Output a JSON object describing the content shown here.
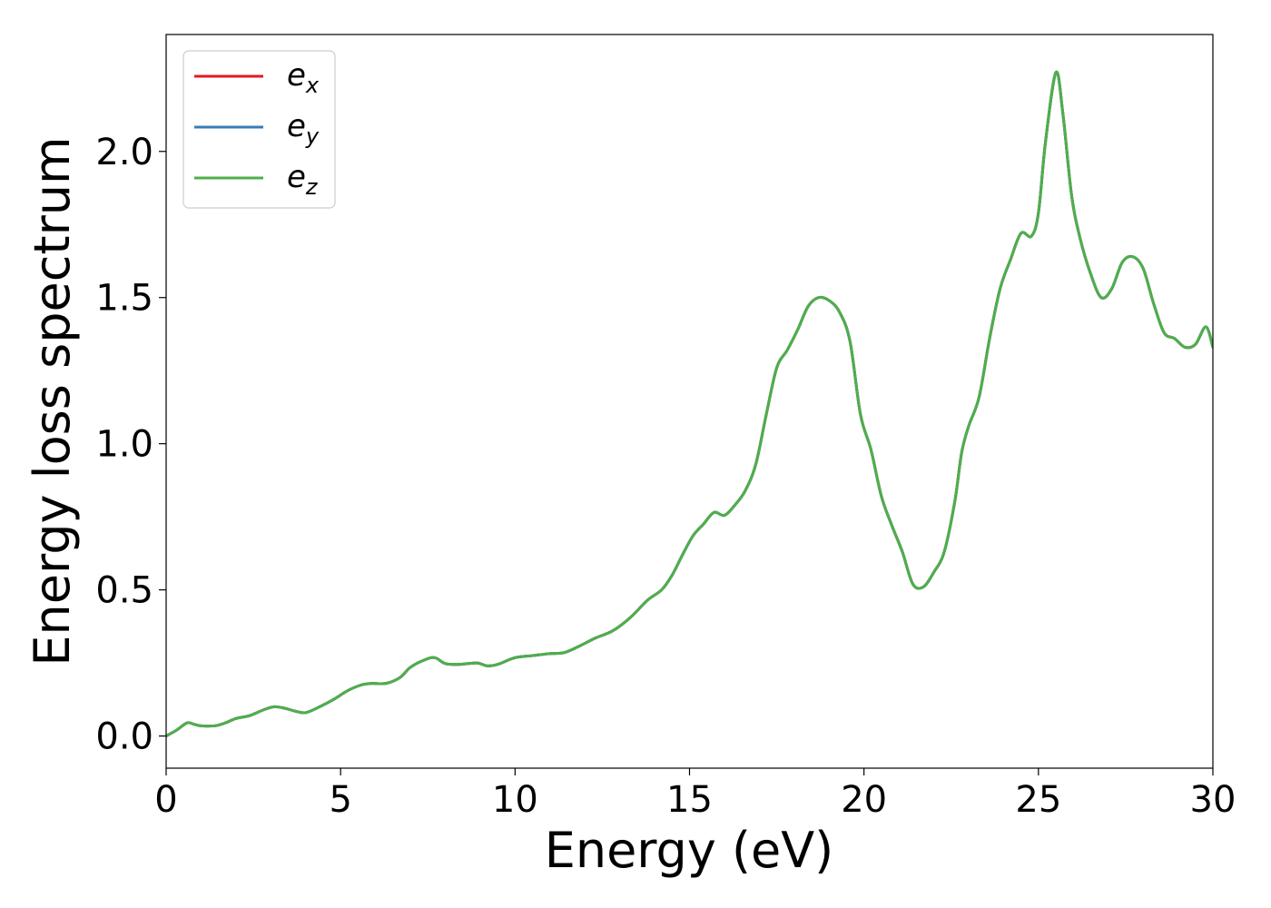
{
  "chart_data": {
    "type": "line",
    "title": "",
    "xlabel": "Energy (eV)",
    "ylabel": "Energy loss spectrum",
    "xlim": [
      0,
      30
    ],
    "ylim": [
      -0.11,
      2.4
    ],
    "xticks": [
      0,
      5,
      10,
      15,
      20,
      25,
      30
    ],
    "xtick_labels": [
      "0",
      "5",
      "10",
      "15",
      "20",
      "25",
      "30"
    ],
    "yticks": [
      0.0,
      0.5,
      1.0,
      1.5,
      2.0
    ],
    "ytick_labels": [
      "0.0",
      "0.5",
      "1.0",
      "1.5",
      "2.0"
    ],
    "grid": false,
    "legend_position": "top-left",
    "x": [
      0,
      0.3,
      0.6,
      0.8,
      1.0,
      1.4,
      1.7,
      2.0,
      2.4,
      2.8,
      3.1,
      3.4,
      3.7,
      4.0,
      4.4,
      4.8,
      5.2,
      5.6,
      5.9,
      6.3,
      6.7,
      7.0,
      7.4,
      7.7,
      8.0,
      8.4,
      8.9,
      9.2,
      9.5,
      10.0,
      10.5,
      11.0,
      11.4,
      11.8,
      12.3,
      12.8,
      13.3,
      13.8,
      14.2,
      14.5,
      14.8,
      15.1,
      15.4,
      15.7,
      16.0,
      16.3,
      16.6,
      16.9,
      17.2,
      17.5,
      17.8,
      18.1,
      18.4,
      18.7,
      19.0,
      19.3,
      19.6,
      19.9,
      20.2,
      20.5,
      20.8,
      21.1,
      21.4,
      21.7,
      22.0,
      22.3,
      22.6,
      22.8,
      23.0,
      23.3,
      23.6,
      23.9,
      24.2,
      24.5,
      24.8,
      25.0,
      25.2,
      25.5,
      25.7,
      25.95,
      26.2,
      26.5,
      26.8,
      27.1,
      27.4,
      27.7,
      28.0,
      28.3,
      28.6,
      28.9,
      29.2,
      29.5,
      29.8,
      30.0
    ],
    "series": [
      {
        "name": "e",
        "sub": "x",
        "color": "#e41a1c",
        "values": [
          0.0,
          0.02,
          0.045,
          0.04,
          0.035,
          0.035,
          0.045,
          0.06,
          0.07,
          0.09,
          0.1,
          0.095,
          0.085,
          0.08,
          0.1,
          0.125,
          0.155,
          0.175,
          0.18,
          0.18,
          0.2,
          0.235,
          0.26,
          0.268,
          0.248,
          0.245,
          0.25,
          0.24,
          0.245,
          0.268,
          0.275,
          0.282,
          0.285,
          0.305,
          0.335,
          0.36,
          0.405,
          0.465,
          0.5,
          0.55,
          0.62,
          0.685,
          0.725,
          0.765,
          0.755,
          0.79,
          0.84,
          0.93,
          1.1,
          1.26,
          1.32,
          1.39,
          1.47,
          1.5,
          1.49,
          1.45,
          1.35,
          1.1,
          0.98,
          0.82,
          0.72,
          0.63,
          0.52,
          0.51,
          0.56,
          0.63,
          0.8,
          0.97,
          1.06,
          1.16,
          1.36,
          1.53,
          1.63,
          1.72,
          1.71,
          1.79,
          2.03,
          2.27,
          2.13,
          1.85,
          1.7,
          1.58,
          1.5,
          1.53,
          1.62,
          1.64,
          1.6,
          1.48,
          1.38,
          1.36,
          1.33,
          1.34,
          1.4,
          1.33
        ]
      },
      {
        "name": "e",
        "sub": "y",
        "color": "#377eb8",
        "values": [
          0.0,
          0.02,
          0.045,
          0.04,
          0.035,
          0.035,
          0.045,
          0.06,
          0.07,
          0.09,
          0.1,
          0.095,
          0.085,
          0.08,
          0.1,
          0.125,
          0.155,
          0.175,
          0.18,
          0.18,
          0.2,
          0.235,
          0.26,
          0.268,
          0.248,
          0.245,
          0.25,
          0.24,
          0.245,
          0.268,
          0.275,
          0.282,
          0.285,
          0.305,
          0.335,
          0.36,
          0.405,
          0.465,
          0.5,
          0.55,
          0.62,
          0.685,
          0.725,
          0.765,
          0.755,
          0.79,
          0.84,
          0.93,
          1.1,
          1.26,
          1.32,
          1.39,
          1.47,
          1.5,
          1.49,
          1.45,
          1.35,
          1.1,
          0.98,
          0.82,
          0.72,
          0.63,
          0.52,
          0.51,
          0.56,
          0.63,
          0.8,
          0.97,
          1.06,
          1.16,
          1.36,
          1.53,
          1.63,
          1.72,
          1.71,
          1.79,
          2.03,
          2.27,
          2.13,
          1.85,
          1.7,
          1.58,
          1.5,
          1.53,
          1.62,
          1.64,
          1.6,
          1.48,
          1.38,
          1.36,
          1.33,
          1.34,
          1.4,
          1.33
        ]
      },
      {
        "name": "e",
        "sub": "z",
        "color": "#4daf4a",
        "values": [
          0.0,
          0.02,
          0.045,
          0.04,
          0.035,
          0.035,
          0.045,
          0.06,
          0.07,
          0.09,
          0.1,
          0.095,
          0.085,
          0.08,
          0.1,
          0.125,
          0.155,
          0.175,
          0.18,
          0.18,
          0.2,
          0.235,
          0.26,
          0.268,
          0.248,
          0.245,
          0.25,
          0.24,
          0.245,
          0.268,
          0.275,
          0.282,
          0.285,
          0.305,
          0.335,
          0.36,
          0.405,
          0.465,
          0.5,
          0.55,
          0.62,
          0.685,
          0.725,
          0.765,
          0.755,
          0.79,
          0.84,
          0.93,
          1.1,
          1.26,
          1.32,
          1.39,
          1.47,
          1.5,
          1.49,
          1.45,
          1.35,
          1.1,
          0.98,
          0.82,
          0.72,
          0.63,
          0.52,
          0.51,
          0.56,
          0.63,
          0.8,
          0.97,
          1.06,
          1.16,
          1.36,
          1.53,
          1.63,
          1.72,
          1.71,
          1.79,
          2.03,
          2.27,
          2.13,
          1.85,
          1.7,
          1.58,
          1.5,
          1.53,
          1.62,
          1.64,
          1.6,
          1.48,
          1.38,
          1.36,
          1.33,
          1.34,
          1.4,
          1.33
        ]
      }
    ]
  }
}
